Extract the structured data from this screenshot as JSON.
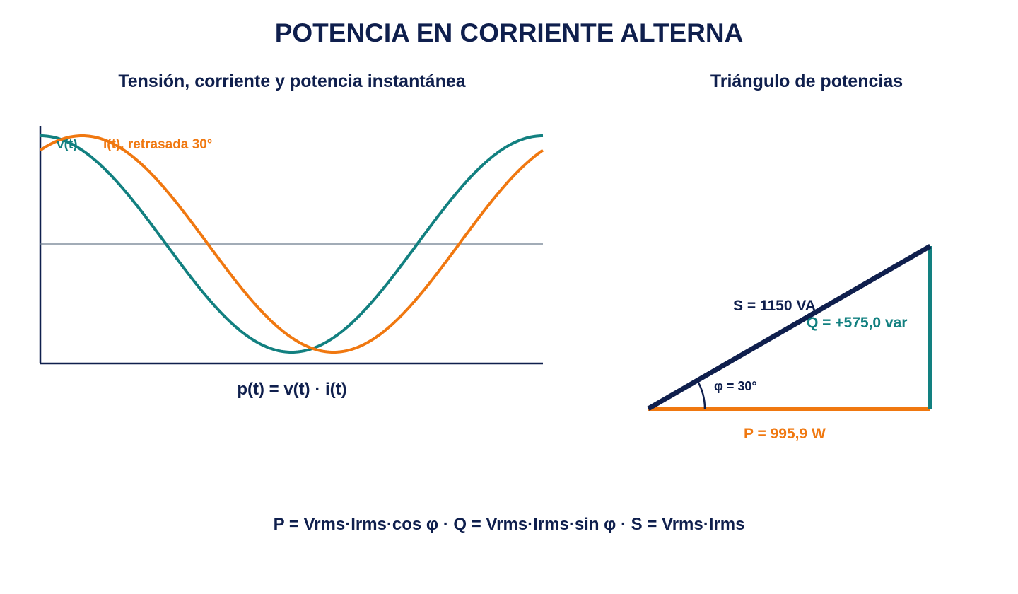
{
  "title": "POTENCIA EN CORRIENTE ALTERNA",
  "wave_panel": {
    "subtitle": "Tensión, corriente y potencia instantánea",
    "formula": "p(t) = v(t) · i(t)"
  },
  "triangle_panel": {
    "subtitle": "Triángulo de potencias",
    "s_label": "S = 1150 VA",
    "q_label": "Q = +575,0 var",
    "p_label": "P = 995,9 W",
    "phi_label": "φ = 30°"
  },
  "bottom_formula": "P = Vrms·Irms·cos φ · Q = Vrms·Irms·sin φ · S = Vrms·Irms",
  "colors": {
    "navy": "#0f1f4d",
    "teal": "#128080",
    "orange": "#f07810",
    "gray": "#6b7b8c"
  },
  "chart_data": {
    "type": "line",
    "series": [
      {
        "name": "v(t)",
        "amplitude": 1,
        "phase_deg": 0,
        "color": "#128080"
      },
      {
        "name": "i(t), retrasada 30°",
        "amplitude": 1,
        "phase_deg": -30,
        "color": "#f07810"
      }
    ],
    "x_range_deg": [
      0,
      360
    ],
    "ylim": [
      -1.1,
      1.1
    ],
    "grid": false
  },
  "triangle_data": {
    "S": 1150,
    "P": 995.9,
    "Q": 575.0,
    "phi_deg": 30
  }
}
